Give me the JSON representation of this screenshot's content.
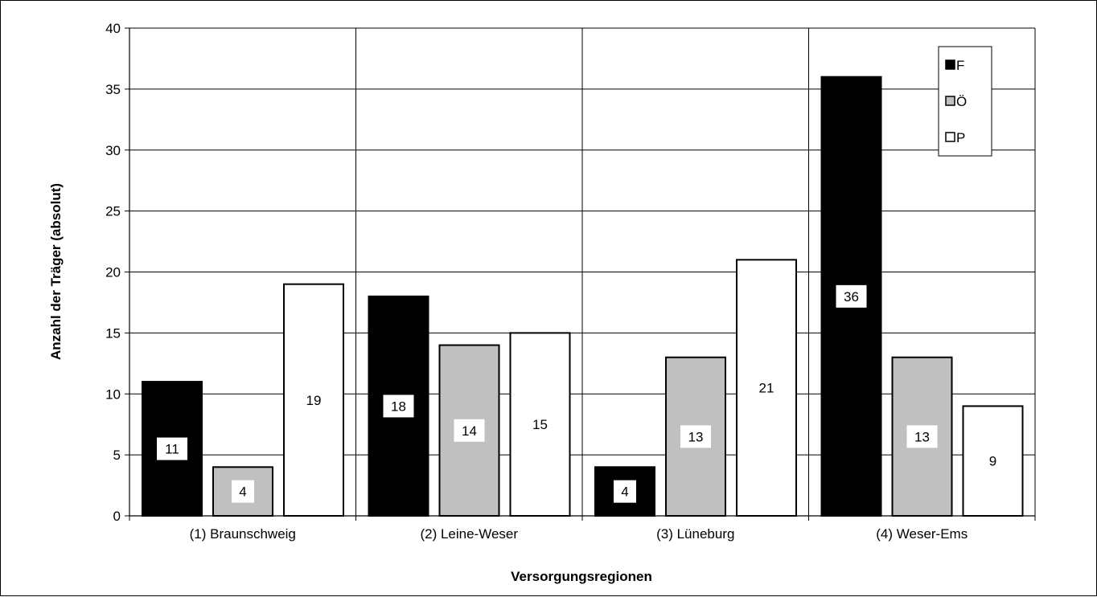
{
  "chart_data": {
    "type": "bar",
    "title": "",
    "xlabel": "Versorgungsregionen",
    "ylabel": "Anzahl der Träger (absolut)",
    "ylim": [
      0,
      40
    ],
    "yticks": [
      "0",
      "5",
      "10",
      "15",
      "20",
      "25",
      "30",
      "35",
      "40"
    ],
    "grid": true,
    "legend_position": "top-right",
    "categories": [
      "(1) Braunschweig",
      "(2) Leine-Weser",
      "(3) Lüneburg",
      "(4) Weser-Ems"
    ],
    "series": [
      {
        "name": "F",
        "color": "#000000",
        "values": [
          11,
          18,
          4,
          36
        ]
      },
      {
        "name": "Ö",
        "color": "#c0c0c0",
        "values": [
          4,
          14,
          13,
          13
        ]
      },
      {
        "name": "P",
        "color": "#ffffff",
        "values": [
          19,
          15,
          21,
          9
        ]
      }
    ]
  }
}
